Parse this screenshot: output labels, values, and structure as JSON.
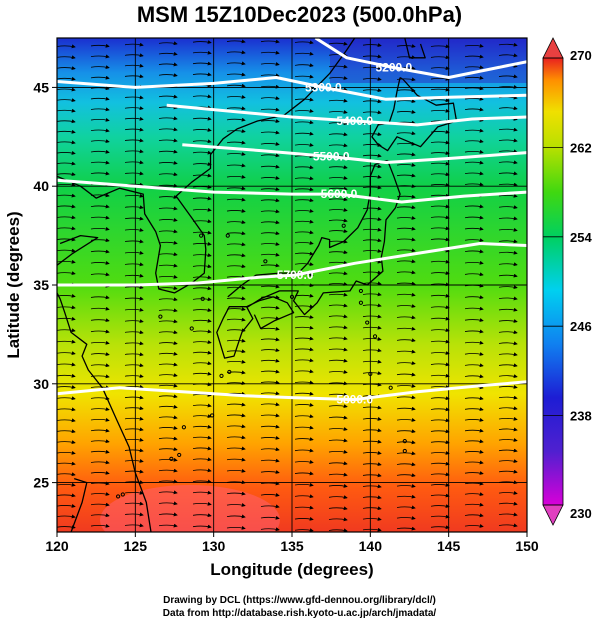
{
  "title": "MSM 15Z10Dec2023 (500.0hPa)",
  "credits": [
    "Drawing by DCL (https://www.gfd-dennou.org/library/dcl/)",
    "Data from http://database.rish.kyoto-u.ac.jp/arch/jmadata/"
  ],
  "map": {
    "lon_range": [
      120,
      150
    ],
    "lat_range": [
      22.5,
      47.5
    ],
    "x_label": "Longitude (degrees)",
    "y_label": "Latitude  (degrees)",
    "x_ticks": [
      120,
      125,
      130,
      135,
      140,
      145,
      150
    ],
    "y_ticks": [
      25,
      30,
      35,
      40,
      45
    ],
    "gridlines": true,
    "contour_color": "#ffffff",
    "coastline_color": "#000000"
  },
  "colorbar": {
    "min": 230,
    "max": 270,
    "tick_labels": [
      230,
      238,
      246,
      254,
      262,
      270
    ],
    "colors": [
      "#d800d8",
      "#1d1dd4",
      "#00c8ff",
      "#00d060",
      "#80e000",
      "#e0e000",
      "#ff8000",
      "#e02020"
    ]
  },
  "contours": [
    {
      "label": "5200.0",
      "label_lon": 141.5,
      "points": [
        [
          136.5,
          47.5
        ],
        [
          138.5,
          46.5
        ],
        [
          141.5,
          46.0
        ],
        [
          145.0,
          45.5
        ],
        [
          147.5,
          45.9
        ],
        [
          150.0,
          46.3
        ]
      ]
    },
    {
      "label": "5300.0",
      "label_lon": 137.0,
      "points": [
        [
          120.0,
          45.3
        ],
        [
          125.0,
          45.0
        ],
        [
          130.0,
          45.2
        ],
        [
          134.0,
          45.5
        ],
        [
          137.0,
          45.0
        ],
        [
          141.0,
          44.4
        ],
        [
          145.0,
          44.5
        ],
        [
          150.0,
          44.6
        ]
      ]
    },
    {
      "label": "5400.0",
      "label_lon": 139.0,
      "points": [
        [
          127.0,
          44.1
        ],
        [
          131.0,
          43.8
        ],
        [
          135.0,
          43.5
        ],
        [
          139.0,
          43.3
        ],
        [
          143.0,
          43.1
        ],
        [
          146.5,
          43.4
        ],
        [
          150.0,
          43.5
        ]
      ]
    },
    {
      "label": "5500.0",
      "label_lon": 137.5,
      "points": [
        [
          128.0,
          42.1
        ],
        [
          133.0,
          41.8
        ],
        [
          137.5,
          41.5
        ],
        [
          141.0,
          41.2
        ],
        [
          145.0,
          41.4
        ],
        [
          150.0,
          41.7
        ]
      ]
    },
    {
      "label": "5600.0",
      "label_lon": 138.0,
      "points": [
        [
          120.0,
          40.3
        ],
        [
          125.0,
          40.0
        ],
        [
          130.0,
          39.7
        ],
        [
          135.0,
          39.6
        ],
        [
          138.0,
          39.6
        ],
        [
          142.0,
          39.2
        ],
        [
          146.0,
          39.5
        ],
        [
          150.0,
          39.7
        ]
      ]
    },
    {
      "label": "5700.0",
      "label_lon": 135.2,
      "points": [
        [
          120.0,
          35.0
        ],
        [
          125.0,
          35.0
        ],
        [
          129.0,
          35.1
        ],
        [
          133.0,
          35.4
        ],
        [
          135.2,
          35.5
        ],
        [
          139.0,
          36.1
        ],
        [
          143.0,
          36.6
        ],
        [
          147.0,
          37.1
        ],
        [
          150.0,
          37.0
        ]
      ]
    },
    {
      "label": "5800.0",
      "label_lon": 139.0,
      "points": [
        [
          120.0,
          29.5
        ],
        [
          124.0,
          29.8
        ],
        [
          128.0,
          29.6
        ],
        [
          132.0,
          29.4
        ],
        [
          135.0,
          29.3
        ],
        [
          139.0,
          29.2
        ],
        [
          143.0,
          29.6
        ],
        [
          147.0,
          29.9
        ],
        [
          150.0,
          30.1
        ]
      ]
    }
  ],
  "coastlines": [
    [
      [
        120.0,
        40.5
      ],
      [
        121.5,
        40.0
      ],
      [
        122.5,
        39.4
      ],
      [
        124.0,
        39.9
      ],
      [
        125.5,
        39.6
      ],
      [
        125.6,
        38.6
      ],
      [
        126.3,
        37.7
      ],
      [
        126.6,
        37.0
      ],
      [
        126.3,
        35.6
      ],
      [
        126.5,
        34.8
      ],
      [
        127.5,
        34.6
      ],
      [
        128.6,
        35.1
      ],
      [
        129.4,
        35.6
      ],
      [
        129.5,
        36.8
      ],
      [
        129.4,
        37.5
      ],
      [
        128.6,
        38.4
      ],
      [
        127.6,
        39.5
      ],
      [
        128.6,
        40.2
      ],
      [
        129.8,
        40.9
      ],
      [
        129.8,
        41.6
      ],
      [
        130.6,
        42.4
      ],
      [
        131.5,
        42.9
      ],
      [
        132.8,
        43.3
      ],
      [
        134.5,
        43.6
      ],
      [
        135.8,
        44.4
      ],
      [
        137.4,
        45.7
      ],
      [
        138.5,
        46.9
      ],
      [
        139.0,
        47.5
      ]
    ],
    [
      [
        141.9,
        45.5
      ],
      [
        141.7,
        44.8
      ],
      [
        141.5,
        43.9
      ],
      [
        141.2,
        43.2
      ],
      [
        140.5,
        43.1
      ],
      [
        140.1,
        42.5
      ],
      [
        140.5,
        42.1
      ],
      [
        141.1,
        41.8
      ],
      [
        141.7,
        42.5
      ],
      [
        143.2,
        42.0
      ],
      [
        144.3,
        43.0
      ],
      [
        145.5,
        43.3
      ],
      [
        145.3,
        44.2
      ],
      [
        144.2,
        44.1
      ],
      [
        143.0,
        44.6
      ],
      [
        142.1,
        45.4
      ],
      [
        141.9,
        45.5
      ]
    ],
    [
      [
        141.1,
        41.3
      ],
      [
        141.5,
        40.5
      ],
      [
        141.9,
        39.6
      ],
      [
        141.6,
        38.9
      ],
      [
        141.0,
        38.3
      ],
      [
        140.9,
        37.2
      ],
      [
        140.7,
        36.4
      ],
      [
        140.8,
        35.7
      ],
      [
        139.8,
        35.0
      ],
      [
        139.1,
        35.2
      ],
      [
        138.7,
        34.7
      ],
      [
        137.0,
        34.6
      ],
      [
        136.6,
        34.1
      ],
      [
        135.8,
        33.5
      ],
      [
        135.1,
        34.2
      ],
      [
        135.4,
        34.7
      ],
      [
        134.2,
        34.7
      ],
      [
        133.0,
        34.3
      ],
      [
        132.2,
        33.9
      ],
      [
        131.0,
        33.9
      ],
      [
        130.6,
        33.3
      ],
      [
        130.2,
        32.6
      ],
      [
        130.7,
        31.3
      ],
      [
        131.3,
        31.4
      ],
      [
        131.8,
        32.6
      ],
      [
        132.5,
        33.3
      ],
      [
        132.1,
        33.9
      ],
      [
        132.9,
        34.2
      ],
      [
        133.8,
        34.4
      ],
      [
        134.7,
        34.1
      ],
      [
        135.1,
        33.6
      ],
      [
        133.9,
        33.2
      ],
      [
        133.0,
        32.8
      ],
      [
        132.6,
        33.5
      ]
    ],
    [
      [
        130.9,
        34.4
      ],
      [
        131.8,
        35.0
      ],
      [
        132.7,
        35.5
      ],
      [
        134.2,
        35.6
      ],
      [
        135.4,
        35.6
      ],
      [
        136.0,
        36.1
      ],
      [
        136.7,
        37.0
      ],
      [
        136.9,
        37.4
      ],
      [
        137.4,
        37.3
      ],
      [
        137.4,
        36.9
      ],
      [
        138.3,
        37.2
      ],
      [
        139.2,
        37.9
      ],
      [
        139.8,
        38.8
      ],
      [
        140.0,
        39.7
      ],
      [
        140.0,
        40.5
      ],
      [
        140.3,
        41.1
      ],
      [
        141.1,
        41.3
      ]
    ],
    [
      [
        142.2,
        47.5
      ],
      [
        142.5,
        46.5
      ],
      [
        143.5,
        46.5
      ],
      [
        143.2,
        47.2
      ]
    ],
    [
      [
        121.1,
        25.2
      ],
      [
        121.9,
        25.0
      ],
      [
        121.6,
        24.0
      ],
      [
        120.9,
        22.5
      ]
    ],
    [
      [
        120.0,
        27.2
      ],
      [
        119.9,
        26.6
      ],
      [
        120.0,
        26.0
      ]
    ],
    [
      [
        126.0,
        22.5
      ],
      [
        125.7,
        24.0
      ],
      [
        125.0,
        25.5
      ],
      [
        124.6,
        26.8
      ],
      [
        123.8,
        28.2
      ],
      [
        122.9,
        29.8
      ],
      [
        122.0,
        30.7
      ],
      [
        121.6,
        31.4
      ],
      [
        121.9,
        32.0
      ],
      [
        120.9,
        32.6
      ],
      [
        120.5,
        33.6
      ],
      [
        120.2,
        34.3
      ],
      [
        120.0,
        34.6
      ]
    ],
    [
      [
        120.2,
        37.1
      ],
      [
        121.5,
        37.5
      ],
      [
        122.6,
        37.4
      ],
      [
        121.0,
        36.6
      ],
      [
        120.0,
        36.0
      ]
    ]
  ],
  "islands": [
    [
      126.6,
      33.4
    ],
    [
      128.6,
      32.8
    ],
    [
      129.3,
      34.3
    ],
    [
      128.1,
      27.8
    ],
    [
      127.8,
      26.4
    ],
    [
      127.3,
      26.2
    ],
    [
      124.2,
      24.4
    ],
    [
      123.9,
      24.3
    ],
    [
      129.9,
      28.4
    ],
    [
      130.5,
      30.4
    ],
    [
      131.0,
      30.6
    ],
    [
      139.4,
      34.1
    ],
    [
      139.8,
      33.1
    ],
    [
      142.2,
      27.1
    ],
    [
      142.2,
      26.6
    ],
    [
      138.3,
      38.0
    ],
    [
      133.3,
      36.2
    ],
    [
      129.2,
      37.5
    ],
    [
      130.9,
      37.5
    ],
    [
      135.0,
      34.4
    ],
    [
      139.4,
      34.7
    ],
    [
      140.3,
      32.4
    ],
    [
      140.0,
      30.5
    ],
    [
      141.3,
      29.8
    ]
  ]
}
